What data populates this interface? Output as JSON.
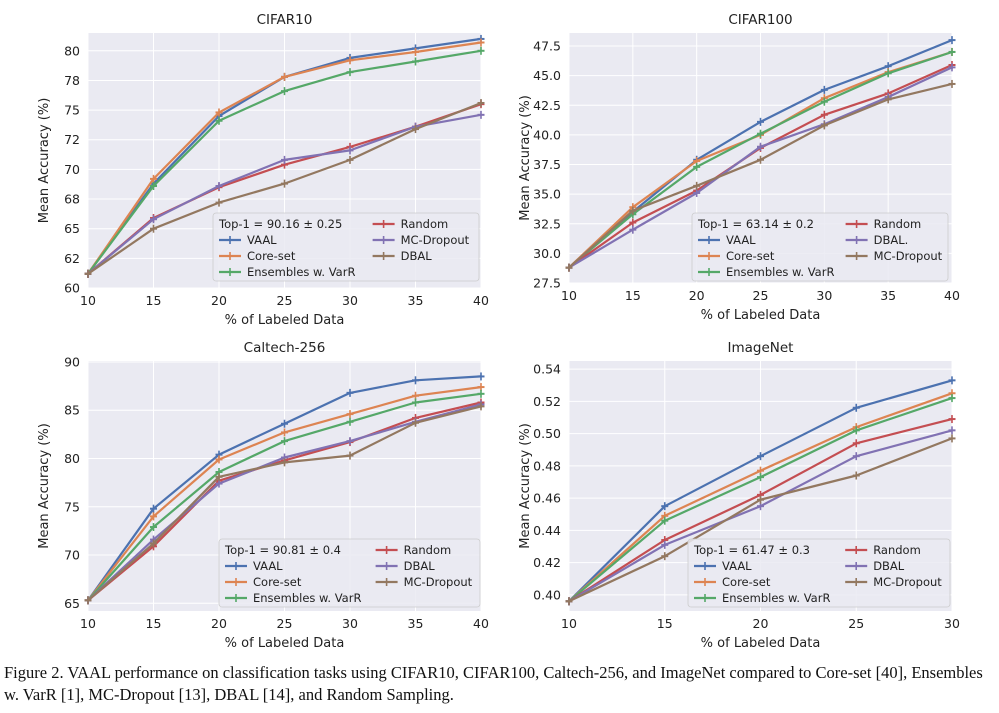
{
  "chart_data": [
    {
      "type": "line",
      "title": "CIFAR10",
      "xlabel": "% of Labeled Data",
      "ylabel": "Mean Accuracy (%)",
      "x": [
        10,
        15,
        20,
        25,
        30,
        35,
        40
      ],
      "xticks": [
        "10",
        "15",
        "20",
        "25",
        "30",
        "35",
        "40"
      ],
      "xlim": [
        10,
        40
      ],
      "yticks": [
        60,
        62.5,
        65,
        67.5,
        70,
        72.5,
        75,
        77.5,
        80
      ],
      "ytick_labels": [
        "60",
        "62",
        "65",
        "68",
        "70",
        "72",
        "75",
        "78",
        "80"
      ],
      "ylim": [
        60,
        81.5
      ],
      "grid": true,
      "legend": {
        "placement": "lower-right",
        "note": "Top-1 = 90.16 ± 0.25",
        "columns": [
          [
            "VAAL",
            "Core-set",
            "Ensembles w. VarR"
          ],
          [
            "Random",
            "MC-Dropout",
            "DBAL"
          ]
        ]
      },
      "series": [
        {
          "name": "VAAL",
          "color": "#4c72b0",
          "values": [
            61.2,
            68.8,
            74.5,
            77.8,
            79.4,
            80.2,
            81.0
          ]
        },
        {
          "name": "Core-set",
          "color": "#dd8452",
          "values": [
            61.2,
            69.2,
            74.8,
            77.8,
            79.2,
            79.9,
            80.7
          ]
        },
        {
          "name": "Ensembles w. VarR",
          "color": "#55a868",
          "values": [
            61.2,
            68.6,
            74.1,
            76.6,
            78.2,
            79.1,
            80.0
          ]
        },
        {
          "name": "Random",
          "color": "#c44e52",
          "values": [
            61.2,
            65.9,
            68.5,
            70.4,
            71.9,
            73.6,
            75.5
          ]
        },
        {
          "name": "MC-Dropout",
          "color": "#8172b3",
          "values": [
            61.2,
            65.8,
            68.6,
            70.8,
            71.6,
            73.6,
            74.6
          ]
        },
        {
          "name": "DBAL",
          "color": "#937860",
          "values": [
            61.2,
            65.0,
            67.2,
            68.8,
            70.8,
            73.4,
            75.6
          ]
        }
      ]
    },
    {
      "type": "line",
      "title": "CIFAR100",
      "xlabel": "% of Labeled Data",
      "ylabel": "Mean Accuracy (%)",
      "x": [
        10,
        15,
        20,
        25,
        30,
        35,
        40
      ],
      "xticks": [
        "10",
        "15",
        "20",
        "25",
        "30",
        "35",
        "40"
      ],
      "xlim": [
        10,
        40
      ],
      "yticks": [
        27.5,
        30,
        32.5,
        35,
        37.5,
        40,
        42.5,
        45,
        47.5
      ],
      "ytick_labels": [
        "27.5",
        "30.0",
        "32.5",
        "35.0",
        "37.5",
        "40.0",
        "42.5",
        "45.0",
        "47.5"
      ],
      "ylim": [
        27.5,
        48.6
      ],
      "grid": true,
      "legend": {
        "placement": "lower-right",
        "note": "Top-1 = 63.14 ± 0.2",
        "columns": [
          [
            "VAAL",
            "Core-set",
            "Ensembles w. VarR"
          ],
          [
            "Random",
            "DBAL.",
            "MC-Dropout"
          ]
        ]
      },
      "series": [
        {
          "name": "VAAL",
          "color": "#4c72b0",
          "values": [
            28.8,
            33.5,
            37.9,
            41.1,
            43.8,
            45.8,
            48.0
          ]
        },
        {
          "name": "Core-set",
          "color": "#dd8452",
          "values": [
            28.8,
            33.9,
            37.8,
            40.0,
            43.1,
            45.3,
            47.0
          ]
        },
        {
          "name": "Ensembles w. VarR",
          "color": "#55a868",
          "values": [
            28.8,
            33.3,
            37.3,
            40.1,
            42.8,
            45.2,
            47.0
          ]
        },
        {
          "name": "Random",
          "color": "#c44e52",
          "values": [
            28.8,
            32.6,
            35.3,
            38.9,
            41.7,
            43.5,
            45.9
          ]
        },
        {
          "name": "DBAL.",
          "color": "#8172b3",
          "values": [
            28.8,
            32.0,
            35.1,
            39.0,
            40.9,
            43.2,
            45.7
          ]
        },
        {
          "name": "MC-Dropout",
          "color": "#937860",
          "values": [
            28.8,
            33.6,
            35.7,
            37.9,
            40.8,
            43.0,
            44.3
          ]
        }
      ]
    },
    {
      "type": "line",
      "title": "Caltech-256",
      "xlabel": "% of Labeled Data",
      "ylabel": "Mean Accuracy (%)",
      "x": [
        10,
        15,
        20,
        25,
        30,
        35,
        40
      ],
      "xticks": [
        "10",
        "15",
        "20",
        "25",
        "30",
        "35",
        "40"
      ],
      "xlim": [
        10,
        40
      ],
      "yticks": [
        65,
        70,
        75,
        80,
        85,
        90
      ],
      "ytick_labels": [
        "65",
        "70",
        "75",
        "80",
        "85",
        "90"
      ],
      "ylim": [
        64.2,
        90.1
      ],
      "grid": true,
      "legend": {
        "placement": "lower-right",
        "note": "Top-1 = 90.81 ± 0.4",
        "columns": [
          [
            "VAAL",
            "Core-set",
            "Ensembles w. VarR"
          ],
          [
            "Random",
            "DBAL",
            "MC-Dropout"
          ]
        ]
      },
      "series": [
        {
          "name": "VAAL",
          "color": "#4c72b0",
          "values": [
            65.3,
            74.8,
            80.4,
            83.6,
            86.8,
            88.1,
            88.5
          ]
        },
        {
          "name": "Core-set",
          "color": "#dd8452",
          "values": [
            65.3,
            74.0,
            79.9,
            82.7,
            84.6,
            86.5,
            87.4
          ]
        },
        {
          "name": "Ensembles w. VarR",
          "color": "#55a868",
          "values": [
            65.3,
            72.9,
            78.6,
            81.8,
            83.8,
            85.8,
            86.7
          ]
        },
        {
          "name": "Random",
          "color": "#c44e52",
          "values": [
            65.3,
            70.9,
            77.7,
            79.8,
            81.7,
            84.2,
            85.8
          ]
        },
        {
          "name": "DBAL",
          "color": "#8172b3",
          "values": [
            65.3,
            71.6,
            77.4,
            80.1,
            81.8,
            83.8,
            85.6
          ]
        },
        {
          "name": "MC-Dropout",
          "color": "#937860",
          "values": [
            65.3,
            71.2,
            78.1,
            79.6,
            80.3,
            83.7,
            85.4
          ]
        }
      ]
    },
    {
      "type": "line",
      "title": "ImageNet",
      "xlabel": "% of Labeled Data",
      "ylabel": "Mean Accuracy (%)",
      "x": [
        10,
        15,
        20,
        25,
        30
      ],
      "xticks": [
        "10",
        "15",
        "20",
        "25",
        "30"
      ],
      "xlim": [
        10,
        30
      ],
      "yticks": [
        0.4,
        0.42,
        0.44,
        0.46,
        0.48,
        0.5,
        0.52,
        0.54
      ],
      "ytick_labels": [
        "0.40",
        "0.42",
        "0.44",
        "0.46",
        "0.48",
        "0.50",
        "0.52",
        "0.54"
      ],
      "ylim": [
        0.39,
        0.545
      ],
      "grid": true,
      "legend": {
        "placement": "lower-right",
        "note": "Top-1 = 61.47 ± 0.3",
        "columns": [
          [
            "VAAL",
            "Core-set",
            "Ensembles w. VarR"
          ],
          [
            "Random",
            "DBAL",
            "MC-Dropout"
          ]
        ]
      },
      "series": [
        {
          "name": "VAAL",
          "color": "#4c72b0",
          "values": [
            0.396,
            0.455,
            0.486,
            0.516,
            0.533
          ]
        },
        {
          "name": "Core-set",
          "color": "#dd8452",
          "values": [
            0.396,
            0.449,
            0.477,
            0.504,
            0.525
          ]
        },
        {
          "name": "Ensembles w. VarR",
          "color": "#55a868",
          "values": [
            0.396,
            0.446,
            0.473,
            0.502,
            0.522
          ]
        },
        {
          "name": "Random",
          "color": "#c44e52",
          "values": [
            0.396,
            0.434,
            0.462,
            0.494,
            0.509
          ]
        },
        {
          "name": "DBAL",
          "color": "#8172b3",
          "values": [
            0.396,
            0.431,
            0.455,
            0.486,
            0.502
          ]
        },
        {
          "name": "MC-Dropout",
          "color": "#937860",
          "values": [
            0.396,
            0.424,
            0.459,
            0.474,
            0.497
          ]
        }
      ]
    }
  ],
  "caption": "Figure 2. VAAL performance on classification tasks using CIFAR10, CIFAR100, Caltech-256, and ImageNet compared to Core-set [40], Ensembles w. VarR [1], MC-Dropout [13], DBAL [14], and Random Sampling."
}
